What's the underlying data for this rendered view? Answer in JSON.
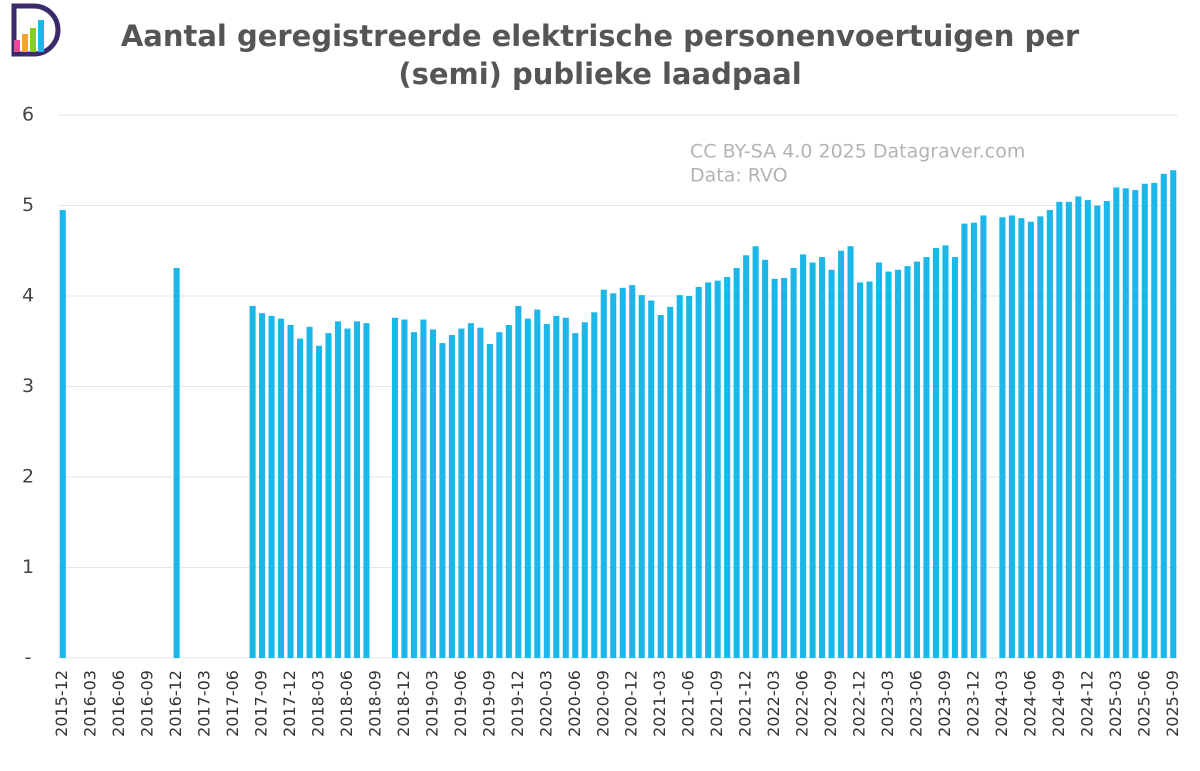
{
  "chart_data": {
    "type": "bar",
    "title": [
      "Aantal geregistreerde elektrische personenvoertuigen per",
      "(semi) publieke laadpaal"
    ],
    "annotations": [
      "CC BY-SA 4.0 2025 Datagraver.com",
      "Data: RVO"
    ],
    "color": "#1cb7e8",
    "grid": true,
    "ylim": [
      0,
      6
    ],
    "yticks": [
      {
        "value": 0,
        "label": "-"
      },
      1,
      2,
      3,
      4,
      5,
      6
    ],
    "categories": [
      "2015-12",
      null,
      null,
      "2016-03",
      null,
      null,
      "2016-06",
      null,
      null,
      "2016-09",
      null,
      null,
      "2016-12",
      null,
      null,
      "2017-03",
      null,
      null,
      "2017-06",
      null,
      null,
      "2017-09",
      null,
      null,
      "2017-12",
      null,
      null,
      "2018-03",
      null,
      null,
      "2018-06",
      null,
      null,
      "2018-09",
      null,
      null,
      "2018-12",
      null,
      null,
      "2019-03",
      null,
      null,
      "2019-06",
      null,
      null,
      "2019-09",
      null,
      null,
      "2019-12",
      null,
      null,
      "2020-03",
      null,
      null,
      "2020-06",
      null,
      null,
      "2020-09",
      null,
      null,
      "2020-12",
      null,
      null,
      "2021-03",
      null,
      null,
      "2021-06",
      null,
      null,
      "2021-09",
      null,
      null,
      "2021-12",
      null,
      null,
      "2022-03",
      null,
      null,
      "2022-06",
      null,
      null,
      "2022-09",
      null,
      null,
      "2022-12",
      null,
      null,
      "2023-03",
      null,
      null,
      "2023-06",
      null,
      null,
      "2023-09",
      null,
      null,
      "2023-12",
      null,
      null,
      "2024-03",
      null,
      null,
      "2024-06",
      null,
      null,
      "2024-09",
      null,
      null,
      "2024-12",
      null,
      null,
      "2025-03",
      null,
      null,
      "2025-06",
      null,
      null,
      "2025-09"
    ],
    "values": [
      4.95,
      null,
      null,
      null,
      null,
      null,
      null,
      null,
      null,
      null,
      null,
      null,
      4.31,
      null,
      null,
      null,
      null,
      null,
      null,
      null,
      3.89,
      3.81,
      3.78,
      3.75,
      3.68,
      3.53,
      3.66,
      3.45,
      3.59,
      3.72,
      3.64,
      3.72,
      3.7,
      null,
      null,
      3.76,
      3.74,
      3.6,
      3.74,
      3.63,
      3.48,
      3.57,
      3.64,
      3.7,
      3.65,
      3.47,
      3.6,
      3.68,
      3.89,
      3.75,
      3.85,
      3.69,
      3.78,
      3.76,
      3.59,
      3.71,
      3.82,
      4.07,
      4.03,
      4.09,
      4.12,
      4.01,
      3.95,
      3.79,
      3.88,
      4.01,
      4.0,
      4.1,
      4.15,
      4.17,
      4.21,
      4.31,
      4.45,
      4.55,
      4.4,
      4.19,
      4.2,
      4.31,
      4.46,
      4.37,
      4.43,
      4.29,
      4.5,
      4.55,
      4.15,
      4.16,
      4.37,
      4.27,
      4.29,
      4.33,
      4.38,
      4.43,
      4.53,
      4.56,
      4.43,
      4.8,
      4.81,
      4.89,
      null,
      4.87,
      4.89,
      4.86,
      4.82,
      4.88,
      4.95,
      5.04,
      5.04,
      5.1,
      5.06,
      5.0,
      5.05,
      5.2,
      5.19,
      5.17,
      5.24,
      5.25,
      5.35,
      5.39
    ]
  }
}
